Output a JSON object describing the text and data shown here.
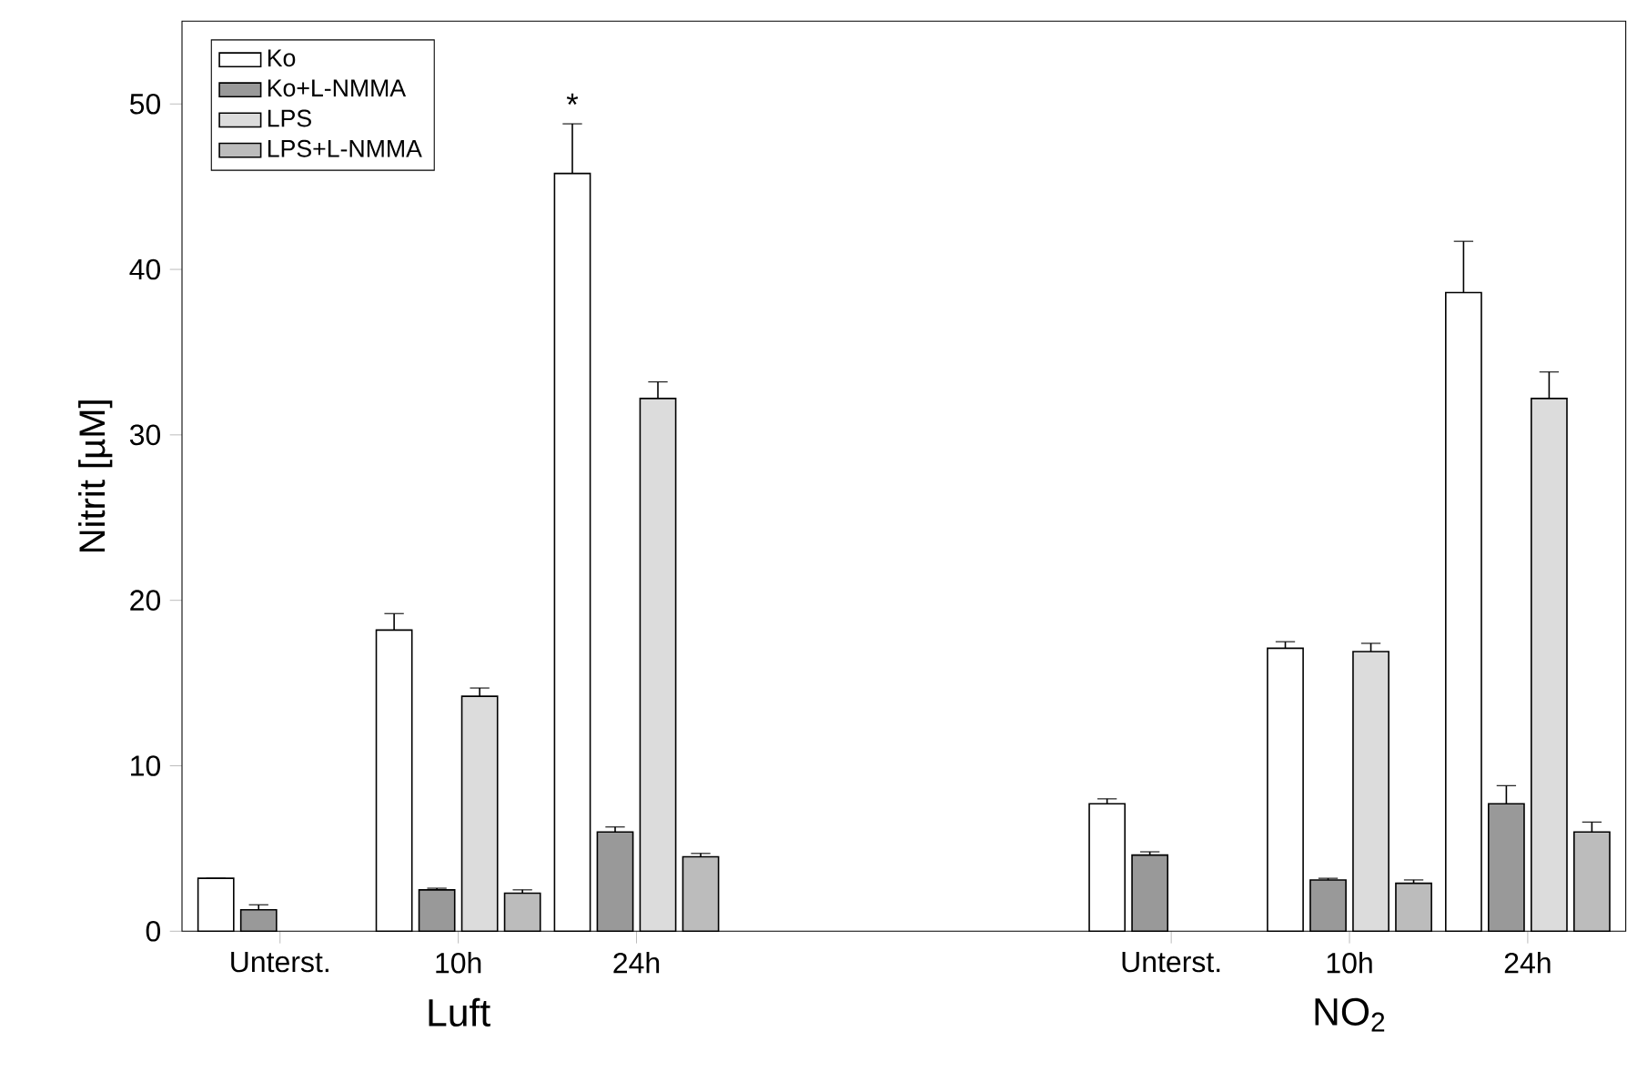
{
  "chart_data": {
    "type": "bar",
    "ylabel": "Nitrit [µM]",
    "categories": [
      "Unterst.",
      "10h",
      "24h",
      null,
      null,
      "Unterst.",
      "10h",
      "24h"
    ],
    "series": [
      {
        "name": "Ko",
        "color": "#ffffff",
        "values": [
          3.2,
          18.2,
          45.8,
          null,
          null,
          7.7,
          17.1,
          38.6
        ],
        "errors": [
          null,
          1.0,
          3.0,
          null,
          null,
          0.3,
          0.4,
          3.1
        ]
      },
      {
        "name": "Ko+L-NMMA",
        "color": "#999999",
        "values": [
          1.3,
          2.5,
          6.0,
          null,
          null,
          4.6,
          3.1,
          7.7
        ],
        "errors": [
          0.3,
          0.1,
          0.3,
          null,
          null,
          0.2,
          0.1,
          1.1
        ]
      },
      {
        "name": "LPS",
        "color": "#dcdcdc",
        "values": [
          null,
          14.2,
          32.2,
          null,
          null,
          null,
          16.9,
          32.2
        ],
        "errors": [
          null,
          0.5,
          1.0,
          null,
          null,
          null,
          0.5,
          1.6
        ]
      },
      {
        "name": "LPS+L-NMMA",
        "color": "#bcbcbc",
        "values": [
          null,
          2.3,
          4.5,
          null,
          null,
          null,
          2.9,
          6.0
        ],
        "errors": [
          null,
          0.2,
          0.2,
          null,
          null,
          null,
          0.2,
          0.6
        ]
      }
    ],
    "ylim": [
      0,
      55
    ],
    "yticks": [
      0,
      10,
      20,
      30,
      40,
      50
    ],
    "grid": false,
    "legend": "top left",
    "annotations": [
      "Luft",
      "NO$_{2}$",
      "*"
    ]
  }
}
